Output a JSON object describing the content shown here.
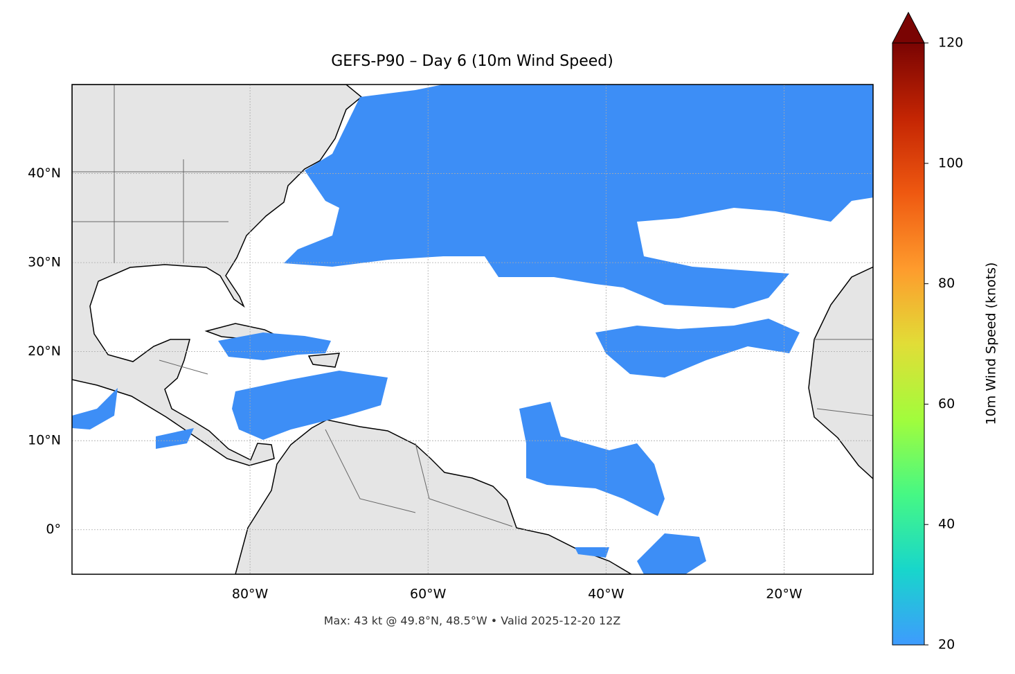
{
  "map": {
    "title": "GEFS-P90 – Day 6 (10m Wind Speed)",
    "footnote": "Max: 43 kt @ 49.8°N, 48.5°W • Valid 2025-12-20 12Z",
    "xlim": [
      -100,
      -10
    ],
    "ylim": [
      -5,
      50
    ],
    "xticks": [
      {
        "value": -80,
        "label": "80°W"
      },
      {
        "value": -60,
        "label": "60°W"
      },
      {
        "value": -40,
        "label": "40°W"
      },
      {
        "value": -20,
        "label": "20°W"
      }
    ],
    "yticks": [
      {
        "value": 0,
        "label": "0°"
      },
      {
        "value": 10,
        "label": "10°N"
      },
      {
        "value": 20,
        "label": "20°N"
      },
      {
        "value": 30,
        "label": "30°N"
      },
      {
        "value": 40,
        "label": "40°N"
      }
    ],
    "grid": true
  },
  "colorbar": {
    "label": "10m Wind Speed (knots)",
    "range": [
      20,
      120
    ],
    "ticks": [
      20,
      40,
      60,
      80,
      100,
      120
    ],
    "colors": [
      "#3e9bfe",
      "#18d6cb",
      "#46f884",
      "#a2fc3c",
      "#e1dd37",
      "#fe9b2d",
      "#ef5911",
      "#c42503",
      "#7a0403"
    ]
  }
}
